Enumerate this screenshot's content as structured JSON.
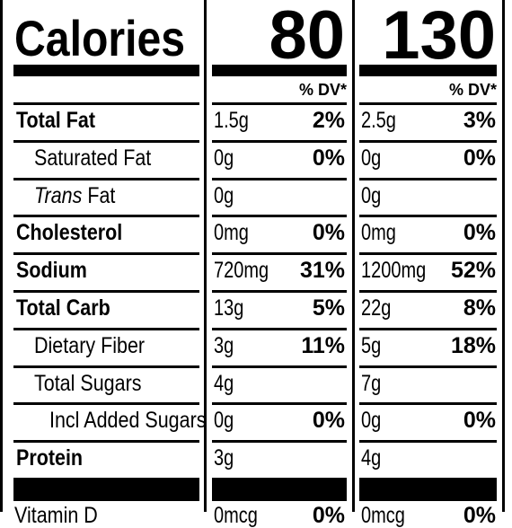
{
  "calories": {
    "label": "Calories",
    "values": [
      "80",
      "130"
    ]
  },
  "dv_header": "% DV*",
  "rows": [
    {
      "key": "total-fat",
      "name_pre": "",
      "name_it": "",
      "name": "Total Fat",
      "bold": true,
      "indent": 0,
      "c1": {
        "amount": "1.5g",
        "dv": "2%"
      },
      "c2": {
        "amount": "2.5g",
        "dv": "3%"
      }
    },
    {
      "key": "saturated-fat",
      "name_pre": "",
      "name_it": "",
      "name": "Saturated Fat",
      "bold": false,
      "indent": 1,
      "c1": {
        "amount": "0g",
        "dv": "0%"
      },
      "c2": {
        "amount": "0g",
        "dv": "0%"
      }
    },
    {
      "key": "trans-fat",
      "name_pre": "",
      "name_it": "Trans",
      "name": " Fat",
      "bold": false,
      "indent": 1,
      "c1": {
        "amount": "0g",
        "dv": ""
      },
      "c2": {
        "amount": "0g",
        "dv": ""
      }
    },
    {
      "key": "cholesterol",
      "name_pre": "",
      "name_it": "",
      "name": "Cholesterol",
      "bold": true,
      "indent": 0,
      "c1": {
        "amount": "0mg",
        "dv": "0%"
      },
      "c2": {
        "amount": "0mg",
        "dv": "0%"
      }
    },
    {
      "key": "sodium",
      "name_pre": "",
      "name_it": "",
      "name": "Sodium",
      "bold": true,
      "indent": 0,
      "c1": {
        "amount": "720mg",
        "dv": "31%"
      },
      "c2": {
        "amount": "1200mg",
        "dv": "52%"
      }
    },
    {
      "key": "total-carb",
      "name_pre": "",
      "name_it": "",
      "name": "Total Carb",
      "bold": true,
      "indent": 0,
      "c1": {
        "amount": "13g",
        "dv": "5%"
      },
      "c2": {
        "amount": "22g",
        "dv": "8%"
      }
    },
    {
      "key": "dietary-fiber",
      "name_pre": "",
      "name_it": "",
      "name": "Dietary Fiber",
      "bold": false,
      "indent": 1,
      "c1": {
        "amount": "3g",
        "dv": "11%"
      },
      "c2": {
        "amount": "5g",
        "dv": "18%"
      }
    },
    {
      "key": "total-sugars",
      "name_pre": "",
      "name_it": "",
      "name": "Total Sugars",
      "bold": false,
      "indent": 1,
      "c1": {
        "amount": "4g",
        "dv": ""
      },
      "c2": {
        "amount": "7g",
        "dv": ""
      }
    },
    {
      "key": "added-sugars",
      "name_pre": "",
      "name_it": "",
      "name": "Incl Added Sugars",
      "bold": false,
      "indent": 2,
      "c1": {
        "amount": "0g",
        "dv": "0%"
      },
      "c2": {
        "amount": "0g",
        "dv": "0%"
      }
    },
    {
      "key": "protein",
      "name_pre": "",
      "name_it": "",
      "name": "Protein",
      "bold": true,
      "indent": 0,
      "c1": {
        "amount": "3g",
        "dv": ""
      },
      "c2": {
        "amount": "4g",
        "dv": ""
      }
    }
  ],
  "partial_row": {
    "name": "Vitamin D",
    "c1": {
      "amount": "0mcg",
      "dv": "0%"
    },
    "c2": {
      "amount": "0mcg",
      "dv": "0%"
    }
  }
}
